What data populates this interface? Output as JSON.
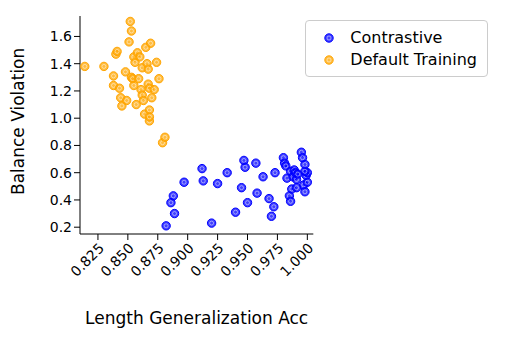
{
  "chart_data": {
    "type": "scatter",
    "x_label": "Length Generalization Acc",
    "y_label": "Balance Violation",
    "xlim": [
      0.81,
      1.005
    ],
    "ylim": [
      0.15,
      1.75
    ],
    "xticks": [
      0.825,
      {
        "value": 0.85,
        "label": "0.850"
      },
      0.875,
      {
        "value": 0.9,
        "label": "0.900"
      },
      0.925,
      {
        "value": 0.95,
        "label": "0.950"
      },
      0.975,
      {
        "value": 1,
        "label": "1.000"
      }
    ],
    "yticks": [
      0.2,
      0.4,
      0.6,
      0.8,
      {
        "value": 1,
        "label": "1.0"
      },
      1.2,
      1.4,
      1.6
    ],
    "grid": false,
    "legend": "upper right",
    "series": [
      {
        "name": "Contrastive",
        "color": "#0000ff",
        "marker": "circle",
        "x": [
          0.882,
          0.886,
          0.888,
          0.889,
          0.897,
          0.912,
          0.913,
          0.92,
          0.925,
          0.933,
          0.94,
          0.945,
          0.947,
          0.948,
          0.95,
          0.957,
          0.958,
          0.963,
          0.968,
          0.97,
          0.972,
          0.973,
          0.98,
          0.981,
          0.982,
          0.983,
          0.985,
          0.986,
          0.986,
          0.987,
          0.988,
          0.989,
          0.99,
          0.991,
          0.991,
          0.992,
          0.995,
          0.996,
          0.997,
          0.998,
          0.998,
          0.999,
          1.0,
          1.0,
          0.998
        ],
        "values": [
          0.21,
          0.38,
          0.43,
          0.3,
          0.53,
          0.63,
          0.54,
          0.23,
          0.52,
          0.6,
          0.31,
          0.49,
          0.69,
          0.64,
          0.38,
          0.67,
          0.45,
          0.57,
          0.41,
          0.28,
          0.35,
          0.6,
          0.71,
          0.67,
          0.65,
          0.56,
          0.43,
          0.61,
          0.39,
          0.48,
          0.57,
          0.62,
          0.6,
          0.55,
          0.49,
          0.59,
          0.75,
          0.71,
          0.51,
          0.46,
          0.66,
          0.58,
          0.6,
          0.53,
          0.61
        ]
      },
      {
        "name": "Default Training",
        "color": "#ffa500",
        "marker": "circle",
        "x": [
          0.814,
          0.83,
          0.838,
          0.838,
          0.84,
          0.841,
          0.843,
          0.844,
          0.845,
          0.848,
          0.849,
          0.852,
          0.853,
          0.851,
          0.853,
          0.854,
          0.855,
          0.855,
          0.856,
          0.857,
          0.858,
          0.86,
          0.859,
          0.861,
          0.862,
          0.862,
          0.863,
          0.864,
          0.865,
          0.866,
          0.867,
          0.867,
          0.868,
          0.868,
          0.868,
          0.869,
          0.87,
          0.872,
          0.874,
          0.876,
          0.879,
          0.881,
          0.868
        ],
        "values": [
          1.38,
          1.38,
          1.31,
          1.24,
          1.47,
          1.49,
          1.22,
          1.15,
          1.09,
          1.34,
          1.13,
          1.71,
          1.64,
          1.56,
          1.3,
          1.29,
          1.45,
          1.24,
          1.41,
          1.1,
          1.48,
          1.45,
          1.29,
          1.21,
          1.37,
          1.17,
          1.13,
          1.03,
          1.52,
          1.4,
          1.36,
          1.25,
          1.22,
          1.06,
          0.98,
          1.55,
          1.15,
          1.21,
          1.41,
          1.29,
          0.82,
          0.86,
          1.01
        ]
      }
    ]
  }
}
